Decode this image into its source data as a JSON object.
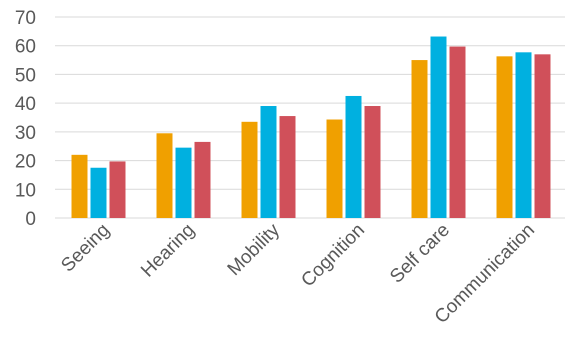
{
  "chart_data": {
    "type": "bar",
    "title": "",
    "xlabel": "",
    "ylabel": "",
    "ylim": [
      0,
      70
    ],
    "yticks": [
      0,
      10,
      20,
      30,
      40,
      50,
      60,
      70
    ],
    "grid": true,
    "legend": "none",
    "categories": [
      "Seeing",
      "Hearing",
      "Mobility",
      "Cognition",
      "Self care",
      "Communication"
    ],
    "series": [
      {
        "color": "#F0A000",
        "values": [
          22,
          29.5,
          33.5,
          34.3,
          55,
          56.3
        ]
      },
      {
        "color": "#00B0E0",
        "values": [
          17.5,
          24.5,
          39,
          42.5,
          63.2,
          57.7
        ]
      },
      {
        "color": "#D0505A",
        "values": [
          19.7,
          26.5,
          35.5,
          39,
          59.7,
          57
        ]
      }
    ]
  }
}
